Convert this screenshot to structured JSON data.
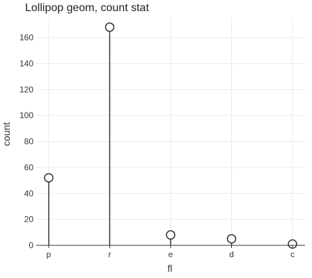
{
  "chart_data": {
    "type": "lollipop",
    "title": "Lollipop geom, count stat",
    "xlabel": "fl",
    "ylabel": "count",
    "categories": [
      "p",
      "r",
      "e",
      "d",
      "c"
    ],
    "values": [
      52,
      168,
      8,
      5,
      1
    ],
    "ylim": [
      0,
      175
    ],
    "yticks": [
      0,
      20,
      40,
      60,
      80,
      100,
      120,
      140,
      160
    ],
    "grid": true,
    "legend": "none",
    "colors": {
      "stem": "#333333",
      "marker_stroke": "#333333",
      "marker_fill": "#ffffff",
      "grid": "#ebebeb",
      "axis": "#333333"
    }
  }
}
